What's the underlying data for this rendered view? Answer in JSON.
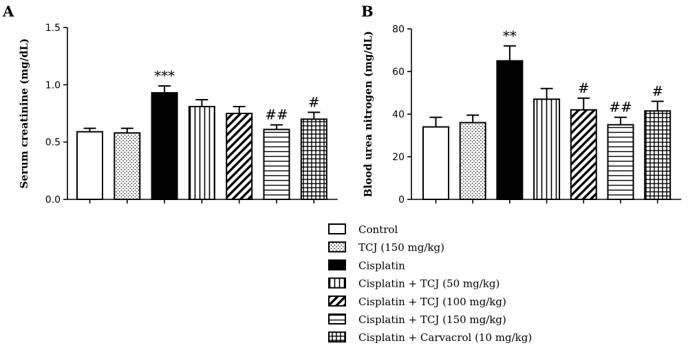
{
  "legend": [
    {
      "label": "Control",
      "pattern": "white"
    },
    {
      "label": "TCJ (150 mg/kg)",
      "pattern": "dots"
    },
    {
      "label": "Cisplatin",
      "pattern": "solid"
    },
    {
      "label": "Cisplatin + TCJ (50 mg/kg)",
      "pattern": "vlines"
    },
    {
      "label": "Cisplatin + TCJ (100 mg/kg)",
      "pattern": "diagonal"
    },
    {
      "label": "Cisplatin + TCJ (150 mg/kg)",
      "pattern": "hlines"
    },
    {
      "label": "Cisplatin + Carvacrol (10 mg/kg)",
      "pattern": "grid"
    }
  ],
  "chart_data": [
    {
      "type": "bar",
      "panel": "A",
      "ylabel": "Serum creatinine (mg/dL)",
      "ylim": [
        0,
        1.5
      ],
      "yticks": [
        "0.0",
        "0.5",
        "1.0",
        "1.5"
      ],
      "categories": [
        "Control",
        "TCJ (150 mg/kg)",
        "Cisplatin",
        "Cisplatin + TCJ (50 mg/kg)",
        "Cisplatin + TCJ (100 mg/kg)",
        "Cisplatin + TCJ (150 mg/kg)",
        "Cisplatin + Carvacrol (10 mg/kg)"
      ],
      "values": [
        0.59,
        0.58,
        0.93,
        0.81,
        0.75,
        0.61,
        0.7
      ],
      "errors": [
        0.03,
        0.04,
        0.06,
        0.06,
        0.06,
        0.04,
        0.06
      ],
      "annotations": [
        "",
        "",
        "***",
        "",
        "",
        "##",
        "#"
      ]
    },
    {
      "type": "bar",
      "panel": "B",
      "ylabel": "Blood urea nitrogen (mg/dL)",
      "ylim": [
        0,
        80
      ],
      "yticks": [
        "0",
        "20",
        "40",
        "60",
        "80"
      ],
      "categories": [
        "Control",
        "TCJ (150 mg/kg)",
        "Cisplatin",
        "Cisplatin + TCJ (50 mg/kg)",
        "Cisplatin + TCJ (100 mg/kg)",
        "Cisplatin + TCJ (150 mg/kg)",
        "Cisplatin + Carvacrol (10 mg/kg)"
      ],
      "values": [
        34,
        36,
        65,
        47,
        42,
        35,
        41.5
      ],
      "errors": [
        4.5,
        3.5,
        7,
        5,
        5.5,
        3.5,
        4.5
      ],
      "annotations": [
        "",
        "",
        "**",
        "",
        "#",
        "##",
        "#"
      ]
    }
  ]
}
